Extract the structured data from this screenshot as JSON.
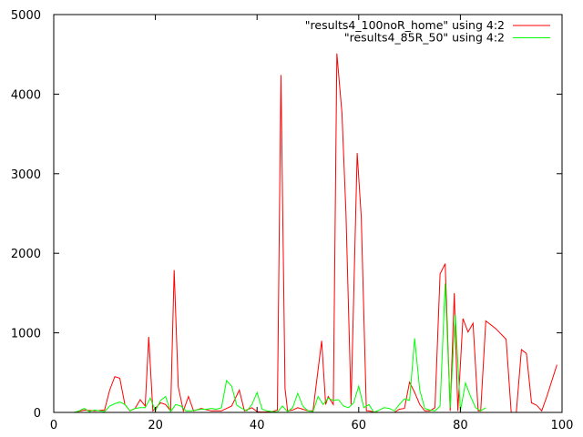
{
  "chart_data": {
    "type": "line",
    "title": "",
    "xlabel": "",
    "ylabel": "",
    "xlim": [
      0,
      100
    ],
    "ylim": [
      0,
      5000
    ],
    "xticks": [
      0,
      20,
      40,
      60,
      80,
      100
    ],
    "yticks": [
      0,
      1000,
      2000,
      3000,
      4000,
      5000
    ],
    "grid": false,
    "legend_position": "top-right",
    "series": [
      {
        "name": "\"results4_100noR_home\" using 4:2",
        "color": "#ff0000",
        "points": [
          [
            4,
            0
          ],
          [
            6,
            30
          ],
          [
            8,
            20
          ],
          [
            10,
            30
          ],
          [
            11,
            280
          ],
          [
            12,
            450
          ],
          [
            13,
            430
          ],
          [
            14,
            100
          ],
          [
            15,
            20
          ],
          [
            16,
            50
          ],
          [
            17,
            160
          ],
          [
            18,
            80
          ],
          [
            18.7,
            950
          ],
          [
            19.5,
            20
          ],
          [
            21,
            120
          ],
          [
            22,
            100
          ],
          [
            23,
            20
          ],
          [
            23.7,
            1790
          ],
          [
            24.5,
            320
          ],
          [
            25.5,
            20
          ],
          [
            26.5,
            200
          ],
          [
            27.5,
            20
          ],
          [
            29,
            50
          ],
          [
            31,
            20
          ],
          [
            33,
            20
          ],
          [
            35,
            80
          ],
          [
            36.5,
            280
          ],
          [
            37.5,
            20
          ],
          [
            39,
            60
          ],
          [
            40,
            10
          ],
          [
            41,
            5
          ],
          [
            43,
            10
          ],
          [
            44,
            30
          ],
          [
            44.7,
            4240
          ],
          [
            45.5,
            300
          ],
          [
            46,
            20
          ],
          [
            47,
            30
          ],
          [
            48,
            60
          ],
          [
            49,
            40
          ],
          [
            50,
            20
          ],
          [
            51,
            20
          ],
          [
            52.7,
            900
          ],
          [
            53.5,
            100
          ],
          [
            54,
            200
          ],
          [
            55,
            100
          ],
          [
            55.7,
            4510
          ],
          [
            56.7,
            3760
          ],
          [
            57.5,
            2500
          ],
          [
            58.5,
            100
          ],
          [
            59.7,
            3260
          ],
          [
            60.5,
            2450
          ],
          [
            61.5,
            20
          ],
          [
            62,
            20
          ],
          [
            63,
            5
          ],
          [
            64,
            0
          ],
          [
            66,
            0
          ],
          [
            67,
            0
          ],
          [
            68,
            40
          ],
          [
            69,
            50
          ],
          [
            70,
            380
          ],
          [
            71,
            250
          ],
          [
            72,
            100
          ],
          [
            73,
            20
          ],
          [
            74,
            20
          ],
          [
            75,
            60
          ],
          [
            76,
            1740
          ],
          [
            77,
            1870
          ],
          [
            78,
            20
          ],
          [
            78.8,
            1500
          ],
          [
            79.5,
            20
          ],
          [
            80.5,
            1180
          ],
          [
            81.5,
            1010
          ],
          [
            82.5,
            1120
          ],
          [
            83.5,
            20
          ],
          [
            84,
            20
          ],
          [
            85,
            1150
          ],
          [
            87,
            1050
          ],
          [
            89,
            920
          ],
          [
            90,
            0
          ],
          [
            91,
            0
          ],
          [
            92,
            790
          ],
          [
            93,
            740
          ],
          [
            94,
            120
          ],
          [
            95,
            90
          ],
          [
            96,
            20
          ],
          [
            97,
            200
          ],
          [
            99,
            600
          ]
        ]
      },
      {
        "name": "\"results4_85R_50\" using 4:2",
        "color": "#00ff00",
        "points": [
          [
            4,
            0
          ],
          [
            5,
            20
          ],
          [
            6,
            50
          ],
          [
            7,
            10
          ],
          [
            8,
            30
          ],
          [
            9,
            20
          ],
          [
            10,
            10
          ],
          [
            11,
            80
          ],
          [
            12,
            110
          ],
          [
            13,
            130
          ],
          [
            14,
            100
          ],
          [
            15,
            20
          ],
          [
            16,
            50
          ],
          [
            17,
            60
          ],
          [
            18,
            60
          ],
          [
            19,
            180
          ],
          [
            20,
            20
          ],
          [
            21,
            150
          ],
          [
            22,
            200
          ],
          [
            23,
            10
          ],
          [
            24,
            100
          ],
          [
            25,
            80
          ],
          [
            26,
            20
          ],
          [
            27,
            20
          ],
          [
            28,
            30
          ],
          [
            29,
            40
          ],
          [
            30,
            40
          ],
          [
            31,
            50
          ],
          [
            32,
            40
          ],
          [
            33,
            60
          ],
          [
            34,
            400
          ],
          [
            35,
            330
          ],
          [
            36,
            90
          ],
          [
            37,
            50
          ],
          [
            38,
            20
          ],
          [
            39,
            100
          ],
          [
            40,
            250
          ],
          [
            41,
            40
          ],
          [
            42,
            20
          ],
          [
            43,
            10
          ],
          [
            44,
            5
          ],
          [
            45,
            80
          ],
          [
            46,
            10
          ],
          [
            47,
            60
          ],
          [
            48,
            240
          ],
          [
            49,
            80
          ],
          [
            50,
            20
          ],
          [
            51,
            10
          ],
          [
            52,
            200
          ],
          [
            53,
            100
          ],
          [
            54,
            180
          ],
          [
            55,
            150
          ],
          [
            56,
            160
          ],
          [
            57,
            80
          ],
          [
            58,
            60
          ],
          [
            59,
            120
          ],
          [
            60,
            330
          ],
          [
            61,
            60
          ],
          [
            62,
            100
          ],
          [
            63,
            0
          ],
          [
            64,
            30
          ],
          [
            65,
            60
          ],
          [
            66,
            50
          ],
          [
            67,
            20
          ],
          [
            68,
            100
          ],
          [
            69,
            170
          ],
          [
            70,
            150
          ],
          [
            71,
            930
          ],
          [
            72,
            280
          ],
          [
            73,
            50
          ],
          [
            74,
            30
          ],
          [
            75,
            20
          ],
          [
            76,
            80
          ],
          [
            77,
            1620
          ],
          [
            78,
            60
          ],
          [
            79,
            1230
          ],
          [
            80,
            20
          ],
          [
            81,
            370
          ],
          [
            82,
            200
          ],
          [
            83,
            60
          ],
          [
            84,
            20
          ],
          [
            85,
            60
          ]
        ]
      }
    ]
  }
}
